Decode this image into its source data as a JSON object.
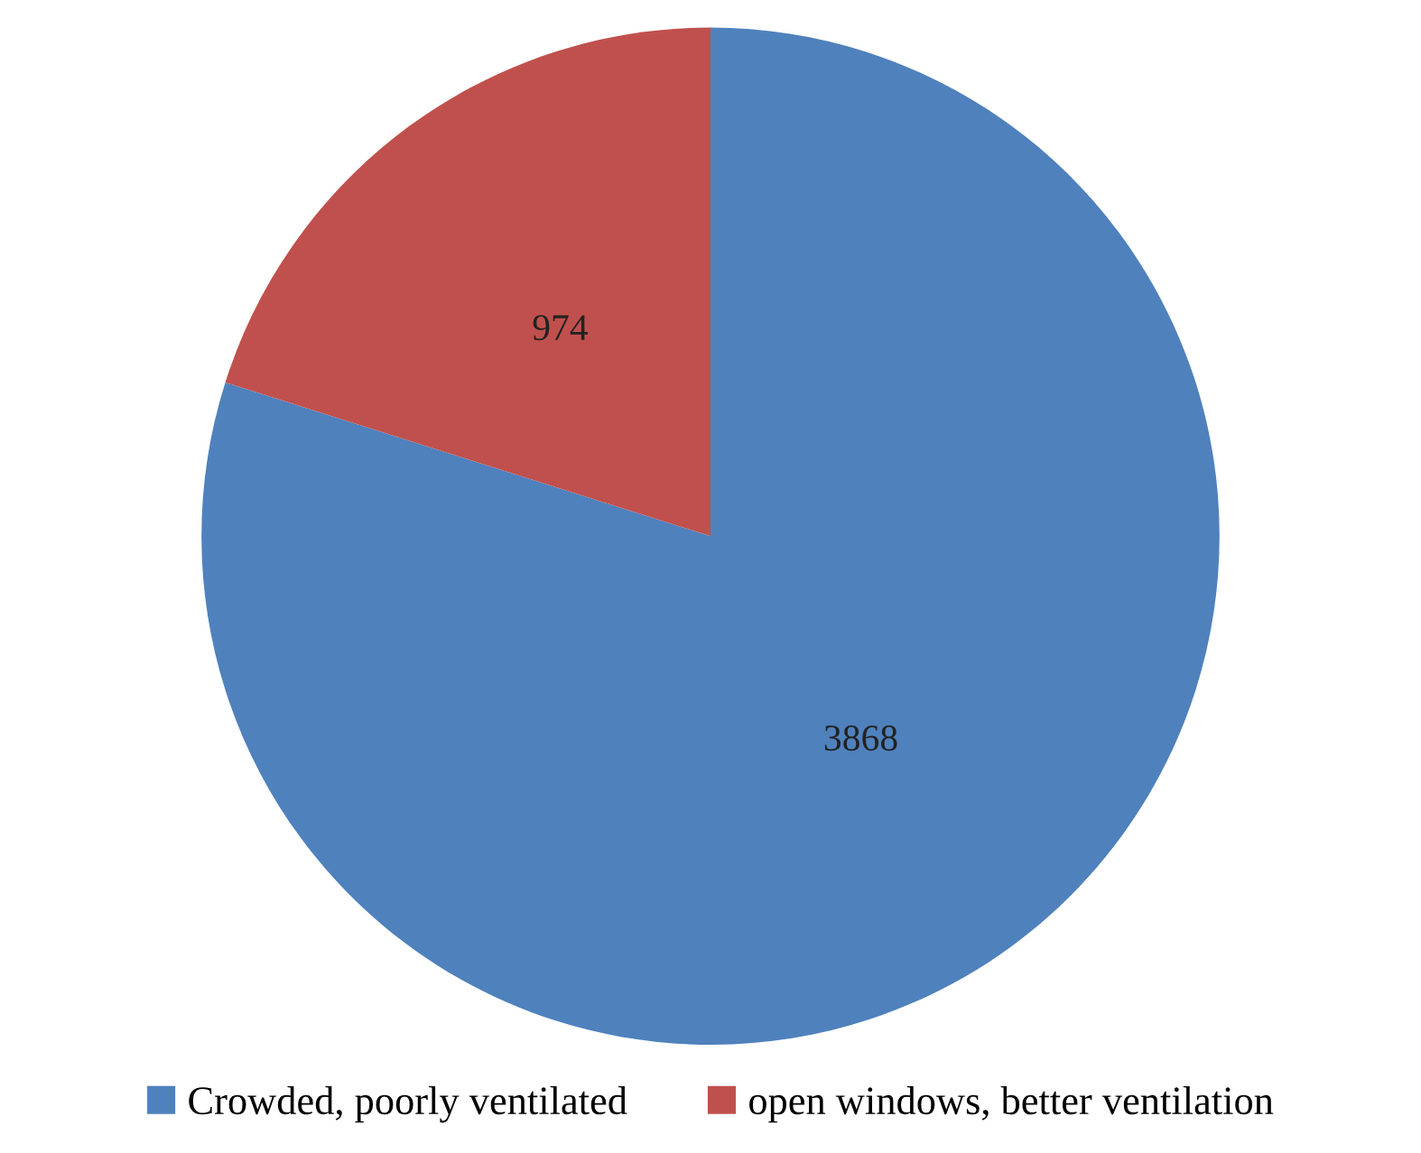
{
  "chart_data": {
    "type": "pie",
    "categories": [
      "Crowded, poorly ventilated",
      "open windows, better ventilation"
    ],
    "values": [
      3868,
      974
    ],
    "colors": [
      "#4f81bd",
      "#c0504d"
    ],
    "data_labels": true,
    "legend": "bottom"
  }
}
